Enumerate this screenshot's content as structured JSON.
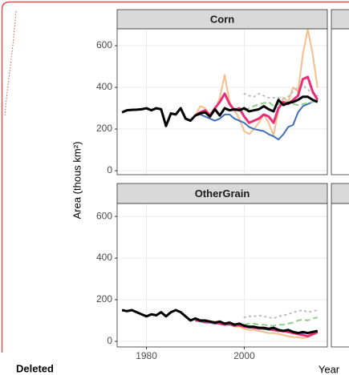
{
  "y_label": "Area (thous km²)",
  "x_label": "Year",
  "ui": {
    "status_label": "Deleted"
  },
  "chart_data": [
    {
      "type": "line",
      "title": "Corn",
      "x": [
        1975,
        1976,
        1977,
        1978,
        1979,
        1980,
        1981,
        1982,
        1983,
        1984,
        1985,
        1986,
        1987,
        1988,
        1989,
        1990,
        1991,
        1992,
        1993,
        1994,
        1995,
        1996,
        1997,
        1998,
        1999,
        2000,
        2001,
        2002,
        2003,
        2004,
        2005,
        2006,
        2007,
        2008,
        2009,
        2010,
        2011,
        2012,
        2013,
        2014,
        2015
      ],
      "xlim": [
        1974,
        2017
      ],
      "ylim": [
        -19,
        681
      ],
      "xticks": [
        1980,
        2000
      ],
      "yticks": [
        0,
        200,
        400,
        600
      ],
      "grid": true,
      "xtick_labels_shown": false,
      "series": [
        {
          "color": "#f7bd8c",
          "width": 2,
          "line_style": "solid",
          "values": [
            null,
            null,
            null,
            null,
            null,
            null,
            null,
            null,
            null,
            null,
            null,
            null,
            null,
            null,
            null,
            265,
            310,
            300,
            270,
            290,
            350,
            460,
            330,
            290,
            250,
            190,
            175,
            200,
            230,
            270,
            230,
            170,
            290,
            350,
            330,
            400,
            380,
            560,
            680,
            560,
            400
          ]
        },
        {
          "color": "#3f6fb5",
          "width": 2,
          "line_style": "solid",
          "values": [
            null,
            null,
            null,
            null,
            null,
            null,
            null,
            null,
            null,
            null,
            null,
            null,
            null,
            null,
            null,
            265,
            270,
            260,
            250,
            240,
            250,
            270,
            270,
            250,
            240,
            230,
            210,
            200,
            195,
            190,
            175,
            165,
            150,
            175,
            210,
            220,
            280,
            310,
            320,
            330,
            340
          ]
        },
        {
          "color": "#bdbdbd",
          "width": 2,
          "line_style": "dotted",
          "values": [
            null,
            null,
            null,
            null,
            null,
            null,
            null,
            null,
            null,
            null,
            null,
            null,
            null,
            null,
            null,
            null,
            null,
            null,
            null,
            null,
            null,
            null,
            null,
            null,
            null,
            370,
            360,
            355,
            370,
            360,
            350,
            350,
            350,
            345,
            355,
            380,
            400,
            410,
            390,
            370,
            360
          ]
        },
        {
          "color": "#8fcf8a",
          "width": 2,
          "line_style": "dashed",
          "values": [
            null,
            null,
            null,
            null,
            null,
            null,
            null,
            null,
            null,
            null,
            null,
            null,
            null,
            null,
            null,
            null,
            null,
            null,
            null,
            null,
            null,
            null,
            null,
            null,
            null,
            290,
            300,
            310,
            320,
            325,
            330,
            310,
            320,
            325,
            330,
            320,
            315,
            320,
            325,
            330,
            335
          ]
        },
        {
          "color": "#e7307a",
          "width": 3,
          "line_style": "solid",
          "values": [
            null,
            null,
            null,
            null,
            null,
            null,
            null,
            null,
            null,
            null,
            null,
            null,
            null,
            null,
            null,
            265,
            280,
            290,
            265,
            300,
            330,
            370,
            320,
            290,
            300,
            260,
            230,
            240,
            250,
            270,
            260,
            230,
            300,
            330,
            320,
            340,
            360,
            440,
            450,
            380,
            340
          ]
        },
        {
          "color": "#000000",
          "width": 3,
          "line_style": "solid",
          "values": [
            280,
            290,
            292,
            293,
            295,
            300,
            290,
            300,
            295,
            215,
            275,
            270,
            300,
            250,
            240,
            265,
            275,
            280,
            260,
            295,
            265,
            300,
            290,
            295,
            290,
            300,
            285,
            290,
            295,
            310,
            295,
            285,
            340,
            315,
            325,
            330,
            340,
            355,
            355,
            340,
            330
          ]
        }
      ]
    },
    {
      "type": "line",
      "title": "OtherGrain",
      "x": [
        1975,
        1976,
        1977,
        1978,
        1979,
        1980,
        1981,
        1982,
        1983,
        1984,
        1985,
        1986,
        1987,
        1988,
        1989,
        1990,
        1991,
        1992,
        1993,
        1994,
        1995,
        1996,
        1997,
        1998,
        1999,
        2000,
        2001,
        2002,
        2003,
        2004,
        2005,
        2006,
        2007,
        2008,
        2009,
        2010,
        2011,
        2012,
        2013,
        2014,
        2015
      ],
      "xlim": [
        1974,
        2017
      ],
      "ylim": [
        -27,
        662
      ],
      "xticks": [
        1980,
        2000
      ],
      "yticks": [
        0,
        200,
        400,
        600
      ],
      "grid": true,
      "xtick_labels_shown": true,
      "series": [
        {
          "color": "#f7bd8c",
          "width": 2,
          "line_style": "solid",
          "values": [
            null,
            null,
            null,
            null,
            null,
            null,
            null,
            null,
            null,
            null,
            null,
            null,
            null,
            null,
            null,
            100,
            95,
            95,
            90,
            95,
            90,
            80,
            80,
            70,
            70,
            60,
            55,
            55,
            50,
            45,
            40,
            40,
            35,
            30,
            25,
            20,
            20,
            15,
            20,
            30,
            40
          ]
        },
        {
          "color": "#3f6fb5",
          "width": 2,
          "line_style": "solid",
          "values": [
            null,
            null,
            null,
            null,
            null,
            null,
            null,
            null,
            null,
            null,
            null,
            null,
            null,
            null,
            null,
            100,
            95,
            90,
            90,
            85,
            85,
            80,
            80,
            75,
            75,
            70,
            65,
            65,
            60,
            60,
            55,
            55,
            50,
            50,
            45,
            45,
            40,
            40,
            40,
            45,
            50
          ]
        },
        {
          "color": "#bdbdbd",
          "width": 2,
          "line_style": "dotted",
          "values": [
            null,
            null,
            null,
            null,
            null,
            null,
            null,
            null,
            null,
            null,
            null,
            null,
            null,
            null,
            null,
            null,
            null,
            null,
            null,
            null,
            null,
            null,
            null,
            null,
            null,
            115,
            120,
            120,
            125,
            120,
            115,
            110,
            120,
            125,
            130,
            140,
            145,
            150,
            140,
            145,
            150
          ]
        },
        {
          "color": "#8fcf8a",
          "width": 2,
          "line_style": "dashed",
          "values": [
            null,
            null,
            null,
            null,
            null,
            null,
            null,
            null,
            null,
            null,
            null,
            null,
            null,
            null,
            null,
            null,
            null,
            null,
            null,
            null,
            null,
            null,
            null,
            null,
            null,
            80,
            85,
            85,
            80,
            80,
            75,
            75,
            80,
            80,
            85,
            90,
            100,
            105,
            100,
            110,
            115
          ]
        },
        {
          "color": "#e7307a",
          "width": 3,
          "line_style": "solid",
          "values": [
            null,
            null,
            null,
            null,
            null,
            null,
            null,
            null,
            null,
            null,
            null,
            null,
            null,
            null,
            null,
            100,
            100,
            95,
            95,
            90,
            85,
            80,
            85,
            75,
            80,
            70,
            70,
            65,
            65,
            60,
            60,
            55,
            50,
            50,
            45,
            40,
            35,
            30,
            25,
            35,
            45
          ]
        },
        {
          "color": "#000000",
          "width": 3,
          "line_style": "solid",
          "values": [
            150,
            145,
            150,
            140,
            130,
            120,
            130,
            125,
            140,
            120,
            140,
            150,
            140,
            120,
            100,
            110,
            100,
            100,
            95,
            90,
            95,
            85,
            90,
            80,
            85,
            75,
            70,
            70,
            65,
            65,
            60,
            65,
            55,
            50,
            55,
            45,
            40,
            45,
            40,
            45,
            50
          ]
        }
      ]
    }
  ]
}
